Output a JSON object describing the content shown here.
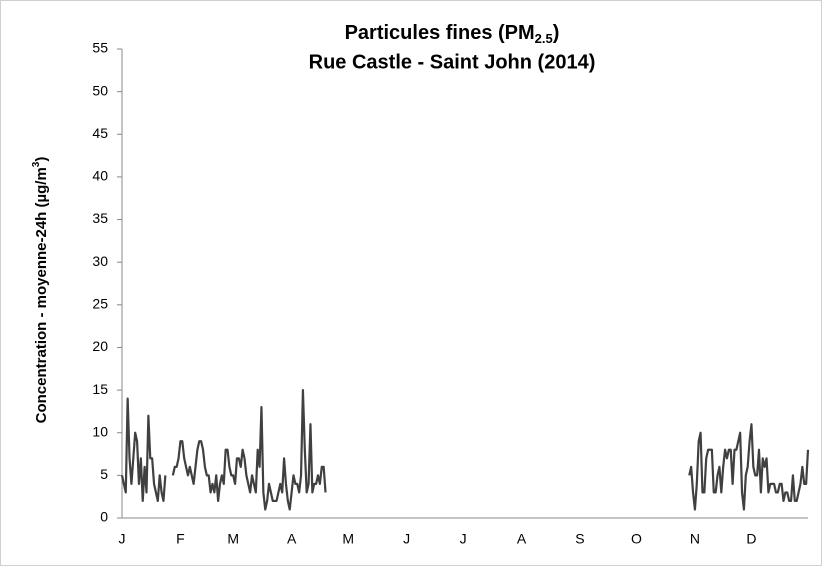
{
  "chart_data": {
    "type": "line",
    "title": [
      "Particules fines (PM",
      "2.5",
      ")"
    ],
    "subtitle": "Rue Castle - Saint John (2014)",
    "y_label": [
      "Concentration - moyenne-24h (µg/m",
      "3",
      ")"
    ],
    "categories": [
      "J",
      null,
      null,
      null,
      null,
      null,
      null,
      null,
      null,
      null,
      null,
      null,
      null,
      null,
      null,
      null,
      null,
      null,
      null,
      null,
      null,
      null,
      null,
      null,
      null,
      null,
      null,
      null,
      null,
      null,
      null,
      "F",
      null,
      null,
      null,
      null,
      null,
      null,
      null,
      null,
      null,
      null,
      null,
      null,
      null,
      null,
      null,
      null,
      null,
      null,
      null,
      null,
      null,
      null,
      null,
      null,
      null,
      null,
      null,
      "M",
      null,
      null,
      null,
      null,
      null,
      null,
      null,
      null,
      null,
      null,
      null,
      null,
      null,
      null,
      null,
      null,
      null,
      null,
      null,
      null,
      null,
      null,
      null,
      null,
      null,
      null,
      null,
      null,
      null,
      null,
      "A",
      null,
      null,
      null,
      null,
      null,
      null,
      null,
      null,
      null,
      null,
      null,
      null,
      null,
      null,
      null,
      null,
      null,
      null,
      null,
      null,
      null,
      null,
      null,
      null,
      null,
      null,
      null,
      null,
      null,
      "M",
      null,
      null,
      null,
      null,
      null,
      null,
      null,
      null,
      null,
      null,
      null,
      null,
      null,
      null,
      null,
      null,
      null,
      null,
      null,
      null,
      null,
      null,
      null,
      null,
      null,
      null,
      null,
      null,
      null,
      null,
      "J",
      null,
      null,
      null,
      null,
      null,
      null,
      null,
      null,
      null,
      null,
      null,
      null,
      null,
      null,
      null,
      null,
      null,
      null,
      null,
      null,
      null,
      null,
      null,
      null,
      null,
      null,
      null,
      null,
      null,
      "J",
      null,
      null,
      null,
      null,
      null,
      null,
      null,
      null,
      null,
      null,
      null,
      null,
      null,
      null,
      null,
      null,
      null,
      null,
      null,
      null,
      null,
      null,
      null,
      null,
      null,
      null,
      null,
      null,
      null,
      null,
      "A",
      null,
      null,
      null,
      null,
      null,
      null,
      null,
      null,
      null,
      null,
      null,
      null,
      null,
      null,
      null,
      null,
      null,
      null,
      null,
      null,
      null,
      null,
      null,
      null,
      null,
      null,
      null,
      null,
      null,
      null,
      "S",
      null,
      null,
      null,
      null,
      null,
      null,
      null,
      null,
      null,
      null,
      null,
      null,
      null,
      null,
      null,
      null,
      null,
      null,
      null,
      null,
      null,
      null,
      null,
      null,
      null,
      null,
      null,
      null,
      null,
      "O",
      null,
      null,
      null,
      null,
      null,
      null,
      null,
      null,
      null,
      null,
      null,
      null,
      null,
      null,
      null,
      null,
      null,
      null,
      null,
      null,
      null,
      null,
      null,
      null,
      null,
      null,
      null,
      null,
      null,
      null,
      "N",
      null,
      null,
      null,
      null,
      null,
      null,
      null,
      null,
      null,
      null,
      null,
      null,
      null,
      null,
      null,
      null,
      null,
      null,
      null,
      null,
      null,
      null,
      null,
      null,
      null,
      null,
      null,
      null,
      null,
      "D",
      null,
      null,
      null,
      null,
      null,
      null,
      null,
      null,
      null,
      null,
      null,
      null,
      null,
      null,
      null,
      null,
      null,
      null,
      null,
      null,
      null,
      null,
      null,
      null,
      null,
      null,
      null,
      null,
      null,
      null
    ],
    "values": [
      5,
      4,
      3,
      14,
      7,
      4,
      7,
      10,
      9,
      4,
      7,
      2,
      6,
      3,
      12,
      7,
      7,
      4,
      3,
      2,
      5,
      3,
      2,
      5,
      null,
      null,
      null,
      5,
      6,
      6,
      7,
      9,
      9,
      7,
      6,
      5,
      6,
      5,
      4,
      6,
      8,
      9,
      9,
      8,
      6,
      5,
      5,
      3,
      4,
      3,
      5,
      2,
      4,
      5,
      4,
      8,
      8,
      6,
      5,
      5,
      4,
      7,
      7,
      6,
      8,
      7,
      5,
      4,
      3,
      5,
      4,
      3,
      8,
      6,
      13,
      3,
      1,
      2,
      4,
      3,
      2,
      2,
      2,
      3,
      4,
      3,
      7,
      4,
      2,
      1,
      3,
      5,
      4,
      4,
      3,
      5,
      15,
      8,
      3,
      4,
      11,
      3,
      4,
      4,
      5,
      4,
      6,
      6,
      3,
      null,
      null,
      null,
      null,
      null,
      null,
      null,
      null,
      null,
      null,
      null,
      null,
      null,
      null,
      null,
      null,
      null,
      null,
      null,
      null,
      null,
      null,
      null,
      null,
      null,
      null,
      null,
      null,
      null,
      null,
      null,
      null,
      null,
      null,
      null,
      null,
      null,
      null,
      null,
      null,
      null,
      null,
      null,
      null,
      null,
      null,
      null,
      null,
      null,
      null,
      null,
      null,
      null,
      null,
      null,
      null,
      null,
      null,
      null,
      null,
      null,
      null,
      null,
      null,
      null,
      null,
      null,
      null,
      null,
      null,
      null,
      null,
      null,
      null,
      null,
      null,
      null,
      null,
      null,
      null,
      null,
      null,
      null,
      null,
      null,
      null,
      null,
      null,
      null,
      null,
      null,
      null,
      null,
      null,
      null,
      null,
      null,
      null,
      null,
      null,
      null,
      null,
      null,
      null,
      null,
      null,
      null,
      null,
      null,
      null,
      null,
      null,
      null,
      null,
      null,
      null,
      null,
      null,
      null,
      null,
      null,
      null,
      null,
      null,
      null,
      null,
      null,
      null,
      null,
      null,
      null,
      null,
      null,
      null,
      null,
      null,
      null,
      null,
      null,
      null,
      null,
      null,
      null,
      null,
      null,
      null,
      null,
      null,
      null,
      null,
      null,
      null,
      null,
      null,
      null,
      null,
      null,
      null,
      null,
      null,
      null,
      null,
      null,
      null,
      null,
      null,
      null,
      null,
      null,
      null,
      null,
      null,
      null,
      null,
      null,
      null,
      null,
      null,
      null,
      null,
      null,
      null,
      null,
      null,
      null,
      null,
      null,
      null,
      null,
      null,
      null,
      null,
      5,
      6,
      3,
      1,
      4,
      9,
      10,
      3,
      3,
      7,
      8,
      8,
      8,
      3,
      3,
      5,
      6,
      3,
      6,
      8,
      7,
      8,
      8,
      4,
      8,
      8,
      9,
      10,
      3,
      1,
      5,
      6,
      9,
      11,
      6,
      5,
      5,
      8,
      3,
      7,
      6,
      7,
      3,
      4,
      4,
      4,
      3,
      3,
      4,
      4,
      2,
      3,
      3,
      2,
      2,
      5,
      2,
      2,
      3,
      4,
      6,
      4,
      4,
      8
    ],
    "color": "#404040",
    "ylim": [
      0,
      55
    ],
    "yticks": [
      0,
      5,
      10,
      15,
      20,
      25,
      30,
      35,
      40,
      45,
      50,
      55
    ],
    "grid": false
  }
}
